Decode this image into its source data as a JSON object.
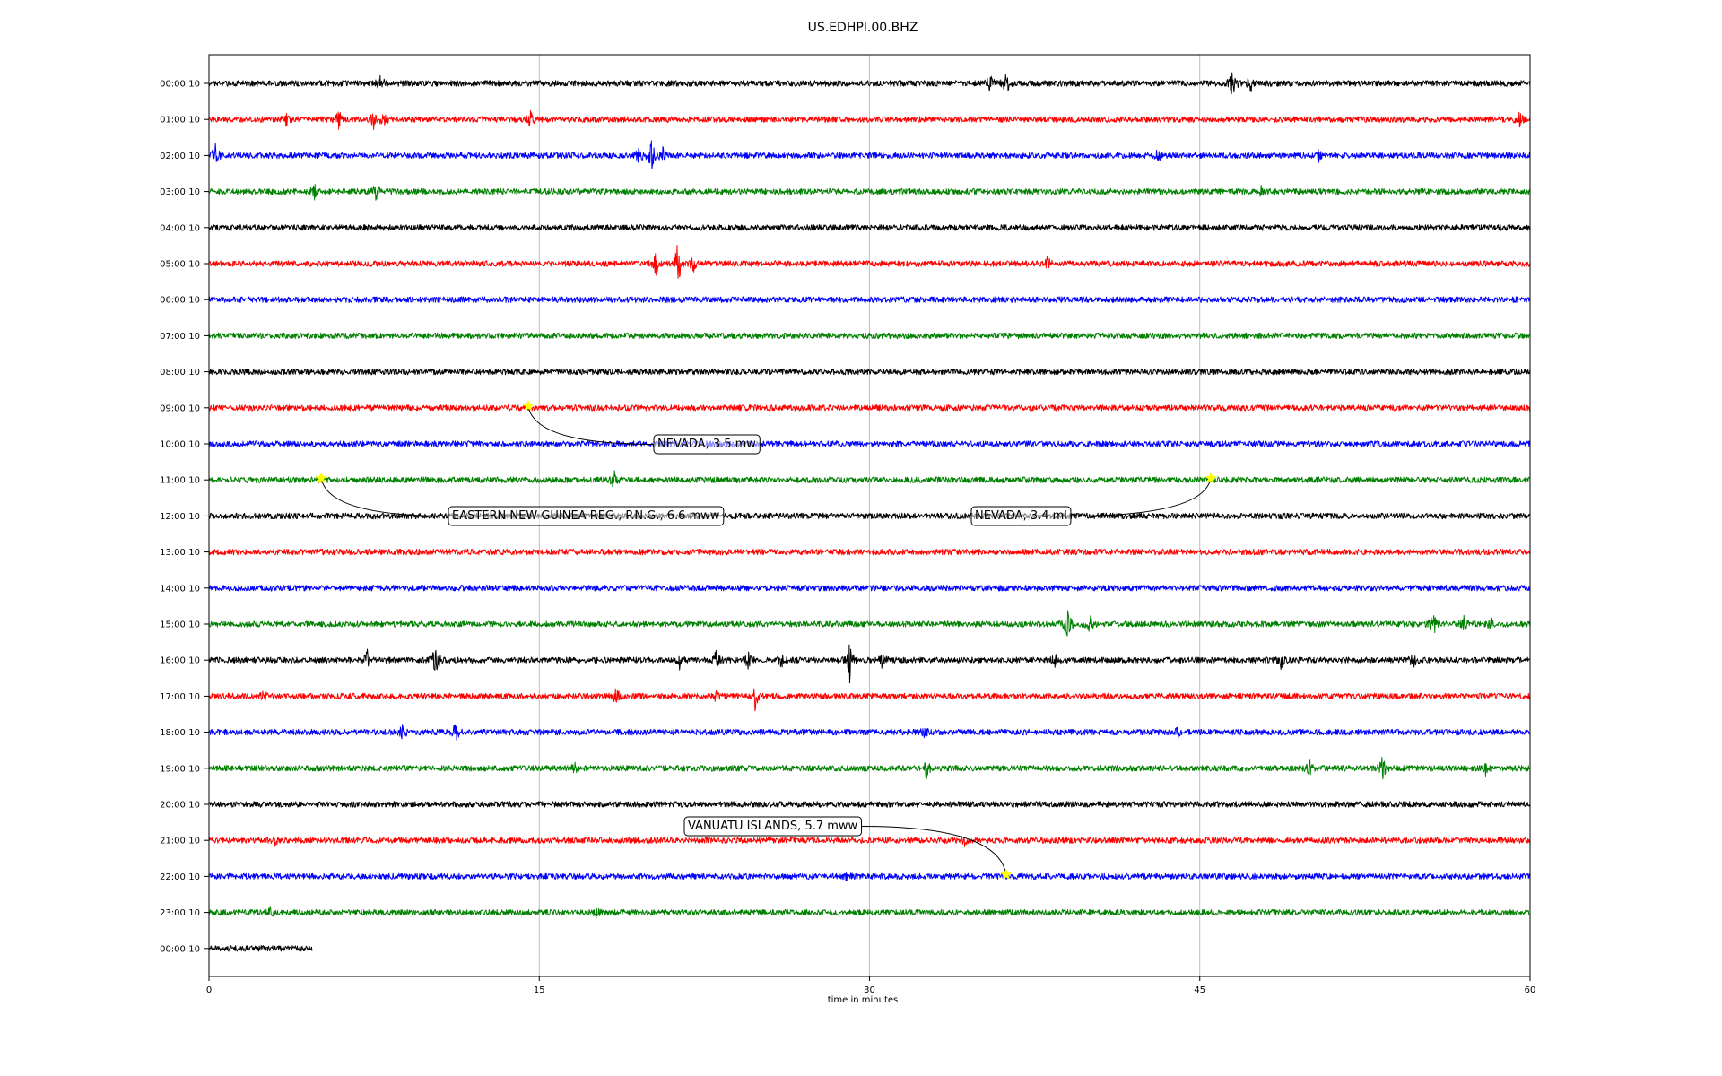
{
  "chart_data": {
    "type": "line",
    "title": "US.EDHPI.00.BHZ",
    "xlabel": "time in minutes",
    "ylabel": "",
    "xlim": [
      0,
      60
    ],
    "x_ticks": [
      "0",
      "15",
      "30",
      "45",
      "60"
    ],
    "x_tick_values": [
      0,
      15,
      30,
      45,
      60
    ],
    "grid": "vertical",
    "legend": "none",
    "colors": [
      "#000000",
      "#ff0000",
      "#0000ff",
      "#008000"
    ],
    "rows": [
      {
        "label": "00:00:10",
        "color": "#000000",
        "end_minute": 60,
        "events": [
          {
            "t": 7.8,
            "a": 9
          },
          {
            "t": 35.5,
            "a": 12
          },
          {
            "t": 36.2,
            "a": 14
          },
          {
            "t": 46.5,
            "a": 16
          },
          {
            "t": 47.3,
            "a": 10
          }
        ]
      },
      {
        "label": "01:00:10",
        "color": "#ff0000",
        "end_minute": 60,
        "events": [
          {
            "t": 3.5,
            "a": 6
          },
          {
            "t": 5.9,
            "a": 10
          },
          {
            "t": 7.5,
            "a": 10
          },
          {
            "t": 7.9,
            "a": 13
          },
          {
            "t": 14.6,
            "a": 8
          },
          {
            "t": 59.5,
            "a": 8
          }
        ]
      },
      {
        "label": "02:00:10",
        "color": "#0000ff",
        "end_minute": 60,
        "events": [
          {
            "t": 0.3,
            "a": 14
          },
          {
            "t": 19.5,
            "a": 12
          },
          {
            "t": 20.1,
            "a": 18
          },
          {
            "t": 20.6,
            "a": 10
          },
          {
            "t": 43.1,
            "a": 6
          },
          {
            "t": 50.4,
            "a": 6
          }
        ]
      },
      {
        "label": "03:00:10",
        "color": "#008000",
        "end_minute": 60,
        "events": [
          {
            "t": 4.8,
            "a": 11
          },
          {
            "t": 7.6,
            "a": 10
          },
          {
            "t": 47.8,
            "a": 5
          }
        ]
      },
      {
        "label": "04:00:10",
        "color": "#000000",
        "end_minute": 60,
        "events": []
      },
      {
        "label": "05:00:10",
        "color": "#ff0000",
        "end_minute": 60,
        "events": [
          {
            "t": 20.3,
            "a": 12
          },
          {
            "t": 21.3,
            "a": 30
          },
          {
            "t": 22.0,
            "a": 10
          },
          {
            "t": 38.1,
            "a": 7
          }
        ]
      },
      {
        "label": "06:00:10",
        "color": "#0000ff",
        "end_minute": 60,
        "events": []
      },
      {
        "label": "07:00:10",
        "color": "#008000",
        "end_minute": 60,
        "events": []
      },
      {
        "label": "08:00:10",
        "color": "#000000",
        "end_minute": 60,
        "events": []
      },
      {
        "label": "09:00:10",
        "color": "#ff0000",
        "end_minute": 60,
        "events": []
      },
      {
        "label": "10:00:10",
        "color": "#0000ff",
        "end_minute": 60,
        "events": []
      },
      {
        "label": "11:00:10",
        "color": "#008000",
        "end_minute": 60,
        "events": [
          {
            "t": 18.4,
            "a": 9
          }
        ]
      },
      {
        "label": "12:00:10",
        "color": "#000000",
        "end_minute": 60,
        "events": []
      },
      {
        "label": "13:00:10",
        "color": "#ff0000",
        "end_minute": 60,
        "events": []
      },
      {
        "label": "14:00:10",
        "color": "#0000ff",
        "end_minute": 60,
        "events": []
      },
      {
        "label": "15:00:10",
        "color": "#008000",
        "end_minute": 60,
        "events": [
          {
            "t": 39.0,
            "a": 20
          },
          {
            "t": 40.0,
            "a": 10
          },
          {
            "t": 55.6,
            "a": 14
          },
          {
            "t": 57.0,
            "a": 8
          },
          {
            "t": 58.2,
            "a": 8
          }
        ]
      },
      {
        "label": "16:00:10",
        "color": "#000000",
        "end_minute": 60,
        "events": [
          {
            "t": 7.2,
            "a": 10
          },
          {
            "t": 10.3,
            "a": 20
          },
          {
            "t": 21.4,
            "a": 12
          },
          {
            "t": 23.0,
            "a": 12
          },
          {
            "t": 24.5,
            "a": 10
          },
          {
            "t": 26.0,
            "a": 8
          },
          {
            "t": 29.1,
            "a": 24
          },
          {
            "t": 30.6,
            "a": 10
          },
          {
            "t": 38.5,
            "a": 12
          },
          {
            "t": 48.7,
            "a": 9
          },
          {
            "t": 54.7,
            "a": 9
          }
        ]
      },
      {
        "label": "17:00:10",
        "color": "#ff0000",
        "end_minute": 60,
        "events": [
          {
            "t": 2.5,
            "a": 6
          },
          {
            "t": 18.5,
            "a": 12
          },
          {
            "t": 23.0,
            "a": 6
          },
          {
            "t": 24.8,
            "a": 14
          }
        ]
      },
      {
        "label": "18:00:10",
        "color": "#0000ff",
        "end_minute": 60,
        "events": [
          {
            "t": 8.8,
            "a": 8
          },
          {
            "t": 11.2,
            "a": 10
          },
          {
            "t": 32.5,
            "a": 5
          },
          {
            "t": 44.0,
            "a": 5
          }
        ]
      },
      {
        "label": "19:00:10",
        "color": "#008000",
        "end_minute": 60,
        "events": [
          {
            "t": 16.6,
            "a": 6
          },
          {
            "t": 32.6,
            "a": 10
          },
          {
            "t": 50.0,
            "a": 8
          },
          {
            "t": 53.3,
            "a": 12
          },
          {
            "t": 58.0,
            "a": 7
          }
        ]
      },
      {
        "label": "20:00:10",
        "color": "#000000",
        "end_minute": 60,
        "events": []
      },
      {
        "label": "21:00:10",
        "color": "#ff0000",
        "end_minute": 60,
        "events": [
          {
            "t": 3.0,
            "a": 5
          },
          {
            "t": 34.3,
            "a": 6
          }
        ]
      },
      {
        "label": "22:00:10",
        "color": "#0000ff",
        "end_minute": 60,
        "events": [
          {
            "t": 29.0,
            "a": 5
          }
        ]
      },
      {
        "label": "23:00:10",
        "color": "#008000",
        "end_minute": 60,
        "events": [
          {
            "t": 2.8,
            "a": 5
          },
          {
            "t": 17.6,
            "a": 5
          }
        ]
      },
      {
        "label": "00:00:10",
        "color": "#000000",
        "end_minute": 4.7,
        "events": []
      }
    ],
    "annotations": [
      {
        "text": "NEVADA, 3.5 mw",
        "row": 9,
        "minute": 14.5
      },
      {
        "text": "EASTERN NEW GUINEA REG., P.N.G., 6.6 mww",
        "row": 11,
        "minute": 5.1
      },
      {
        "text": "NEVADA, 3.4 ml",
        "row": 11,
        "minute": 45.5
      },
      {
        "text": "VANUATU ISLANDS, 5.7 mww",
        "row": 22,
        "minute": 36.2
      }
    ],
    "marker_color": "#ffff00"
  }
}
